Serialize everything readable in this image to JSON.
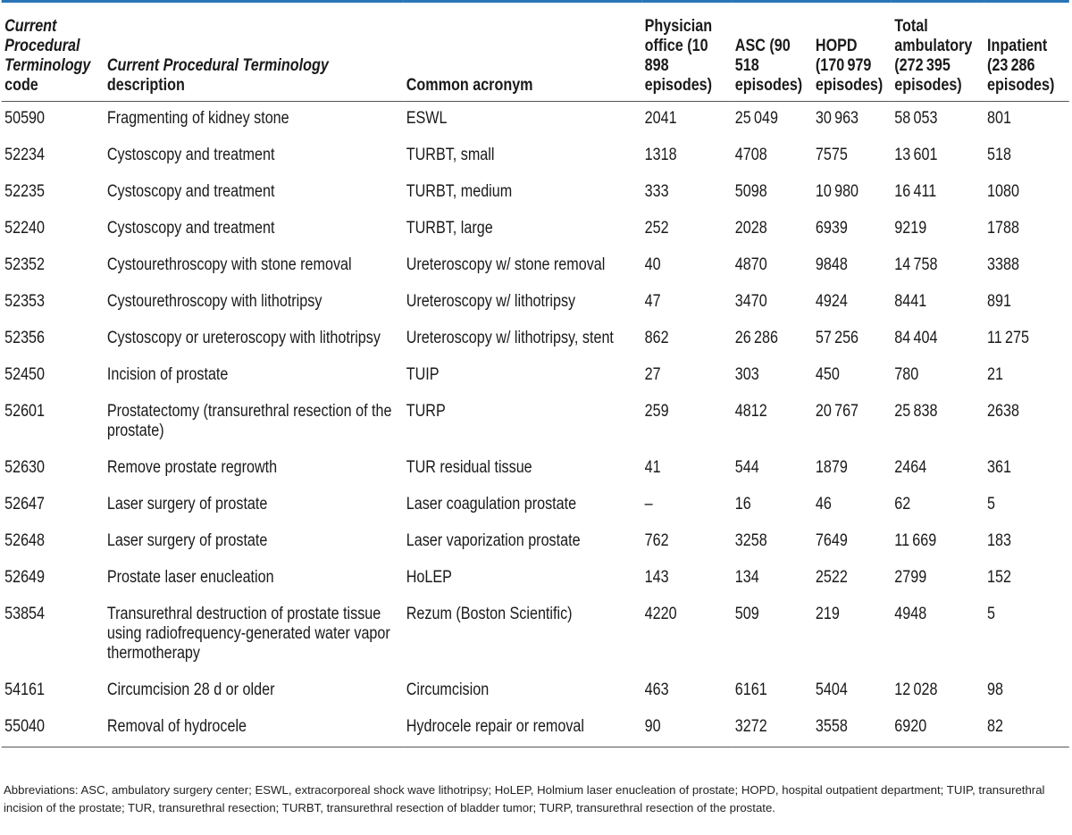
{
  "table": {
    "header": [
      {
        "emphasis": "Current Procedural Terminology",
        "text": "code"
      },
      {
        "emphasis": "Current Procedural Terminology",
        "text": "description"
      },
      {
        "text": "Common acronym"
      },
      {
        "text": "Physician office (10 898 episodes)"
      },
      {
        "text": "ASC (90 518 episodes)"
      },
      {
        "text": "HOPD (170 979 episodes)"
      },
      {
        "text": "Total ambulatory (272 395 episodes)"
      },
      {
        "text": "Inpatient (23 286 episodes)"
      }
    ],
    "rows": [
      [
        "50590",
        "Fragmenting of kidney stone",
        "ESWL",
        "2041",
        "25 049",
        "30 963",
        "58 053",
        "801"
      ],
      [
        "52234",
        "Cystoscopy and treatment",
        "TURBT, small",
        "1318",
        "4708",
        "7575",
        "13 601",
        "518"
      ],
      [
        "52235",
        "Cystoscopy and treatment",
        "TURBT, medium",
        "333",
        "5098",
        "10 980",
        "16 411",
        "1080"
      ],
      [
        "52240",
        "Cystoscopy and treatment",
        "TURBT, large",
        "252",
        "2028",
        "6939",
        "9219",
        "1788"
      ],
      [
        "52352",
        "Cystourethroscopy with stone removal",
        "Ureteroscopy w/ stone removal",
        "40",
        "4870",
        "9848",
        "14 758",
        "3388"
      ],
      [
        "52353",
        "Cystourethroscopy with lithotripsy",
        "Ureteroscopy w/ lithotripsy",
        "47",
        "3470",
        "4924",
        "8441",
        "891"
      ],
      [
        "52356",
        "Cystoscopy or ureteroscopy with lithotripsy",
        "Ureteroscopy w/ lithotripsy, stent",
        "862",
        "26 286",
        "57 256",
        "84 404",
        "11 275"
      ],
      [
        "52450",
        "Incision of prostate",
        "TUIP",
        "27",
        "303",
        "450",
        "780",
        "21"
      ],
      [
        "52601",
        "Prostatectomy (transurethral resection of the prostate)",
        "TURP",
        "259",
        "4812",
        "20 767",
        "25 838",
        "2638"
      ],
      [
        "52630",
        "Remove prostate regrowth",
        "TUR residual tissue",
        "41",
        "544",
        "1879",
        "2464",
        "361"
      ],
      [
        "52647",
        "Laser surgery of prostate",
        "Laser coagulation prostate",
        "–",
        "16",
        "46",
        "62",
        "5"
      ],
      [
        "52648",
        "Laser surgery of prostate",
        "Laser vaporization prostate",
        "762",
        "3258",
        "7649",
        "11 669",
        "183"
      ],
      [
        "52649",
        "Prostate laser enucleation",
        "HoLEP",
        "143",
        "134",
        "2522",
        "2799",
        "152"
      ],
      [
        "53854",
        "Transurethral destruction of prostate tissue using radiofrequency-generated water vapor thermotherapy",
        "Rezum (Boston Scientific)",
        "4220",
        "509",
        "219",
        "4948",
        "5"
      ],
      [
        "54161",
        "Circumcision 28 d or older",
        "Circumcision",
        "463",
        "6161",
        "5404",
        "12 028",
        "98"
      ],
      [
        "55040",
        "Removal of hydrocele",
        "Hydrocele repair or removal",
        "90",
        "3272",
        "3558",
        "6920",
        "82"
      ]
    ]
  },
  "footnote": "Abbreviations: ASC, ambulatory surgery center; ESWL, extracorporeal shock wave lithotripsy; HoLEP, Holmium laser enucleation of prostate; HOPD, hospital outpatient department; TUIP, transurethral incision of the prostate; TUR, transurethral resection; TURBT, transurethral resection of bladder tumor; TURP, transurethral resection of the prostate."
}
